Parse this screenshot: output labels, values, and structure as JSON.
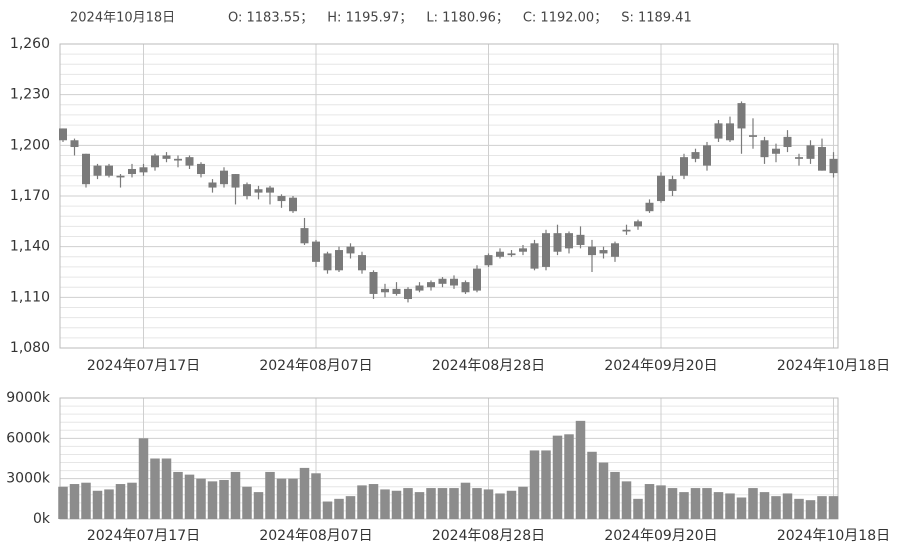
{
  "header": {
    "date": "2024年10月18日",
    "stats": [
      "O: 1183.55；",
      "H: 1195.97；",
      "L: 1180.96；",
      "C: 1192.00；",
      "S: 1189.41"
    ]
  },
  "chart_data": [
    {
      "type": "candlestick",
      "color": "#7a7a7a",
      "categories": [
        null,
        null,
        null,
        null,
        null,
        null,
        null,
        "2024年07月17日",
        null,
        null,
        null,
        null,
        null,
        null,
        null,
        null,
        null,
        null,
        null,
        null,
        null,
        null,
        "2024年08月07日",
        null,
        null,
        null,
        null,
        null,
        null,
        null,
        null,
        null,
        null,
        null,
        null,
        null,
        null,
        "2024年08月28日",
        null,
        null,
        null,
        null,
        null,
        null,
        null,
        null,
        null,
        null,
        null,
        null,
        null,
        null,
        "2024年09月20日",
        null,
        null,
        null,
        null,
        null,
        null,
        null,
        null,
        null,
        null,
        null,
        null,
        null,
        null,
        "2024年10月18日"
      ],
      "open": [
        1210,
        1203,
        1195,
        1188,
        1182,
        1182,
        1183,
        1187,
        1187,
        1192,
        1192,
        1193,
        1189,
        1178,
        1185,
        1183,
        1177,
        1174,
        1175,
        1170,
        1169,
        1151,
        1143,
        1136,
        1138,
        1140,
        1135,
        1125,
        1113,
        1115,
        1115,
        1114,
        1116,
        1118,
        1121,
        1113,
        1114,
        1129,
        1134,
        1136,
        1137,
        1127,
        1128,
        1148,
        1148,
        1147,
        1140,
        1138,
        1134,
        1150,
        1152,
        1161,
        1167,
        1173,
        1182,
        1192,
        1188,
        1204,
        1203,
        1210,
        1205,
        1203,
        1195,
        1205,
        1192,
        1200,
        1199,
        1183.55
      ],
      "high": [
        1210,
        1204,
        1195,
        1189,
        1189,
        1183,
        1189,
        1189,
        1195,
        1196,
        1194,
        1194,
        1190,
        1180,
        1187,
        1183,
        1178,
        1176,
        1176,
        1171,
        1170,
        1157,
        1144,
        1137,
        1140,
        1142,
        1137,
        1126,
        1118,
        1119,
        1116,
        1119,
        1120,
        1122,
        1123,
        1120,
        1129,
        1136,
        1139,
        1138,
        1141,
        1144,
        1150,
        1153,
        1149,
        1152,
        1144,
        1140,
        1143,
        1153,
        1156,
        1168,
        1184,
        1182,
        1195,
        1198,
        1202,
        1215,
        1217,
        1226,
        1216,
        1205,
        1201,
        1209,
        1195,
        1203,
        1204,
        1195.97
      ],
      "low": [
        1202,
        1194,
        1175,
        1180,
        1181,
        1175,
        1181,
        1182,
        1185,
        1190,
        1187,
        1186,
        1181,
        1172,
        1175,
        1165,
        1168,
        1168,
        1165,
        1163,
        1160,
        1141,
        1128,
        1124,
        1125,
        1133,
        1124,
        1109,
        1110,
        1111,
        1107,
        1113,
        1114,
        1116,
        1115,
        1112,
        1113,
        1128,
        1133,
        1134,
        1135,
        1126,
        1126,
        1135,
        1136,
        1139,
        1125,
        1133,
        1131,
        1147,
        1150,
        1160,
        1166,
        1170,
        1180,
        1190,
        1185,
        1202,
        1202,
        1195,
        1198,
        1189,
        1190,
        1196,
        1188,
        1189,
        1185,
        1180.96
      ],
      "close": [
        1203,
        1199,
        1177,
        1182,
        1188,
        1181,
        1186,
        1184,
        1194,
        1194,
        1191,
        1188,
        1183,
        1175,
        1177,
        1175,
        1170,
        1172,
        1172,
        1167,
        1161,
        1142,
        1131,
        1126,
        1126,
        1136,
        1126,
        1112,
        1115,
        1112,
        1109,
        1117,
        1119,
        1121,
        1117,
        1119,
        1127,
        1135,
        1137,
        1135,
        1139,
        1142,
        1148,
        1137,
        1139,
        1141,
        1135,
        1136,
        1142,
        1149,
        1155,
        1166,
        1182,
        1180,
        1193,
        1196,
        1200,
        1213,
        1213,
        1225,
        1206,
        1193,
        1198,
        1199,
        1193,
        1192,
        1185,
        1192.0
      ],
      "ylim": [
        1080,
        1260
      ],
      "yticks": [
        {
          "value": 1080,
          "label": "1,080"
        },
        {
          "value": 1110,
          "label": "1,110"
        },
        {
          "value": 1140,
          "label": "1,140"
        },
        {
          "value": 1170,
          "label": "1,170"
        },
        {
          "value": 1200,
          "label": "1,200"
        },
        {
          "value": 1230,
          "label": "1,230"
        },
        {
          "value": 1260,
          "label": "1,260"
        }
      ]
    },
    {
      "type": "bar",
      "color": "#8c8c8c",
      "categories": [
        null,
        null,
        null,
        null,
        null,
        null,
        null,
        "2024年07月17日",
        null,
        null,
        null,
        null,
        null,
        null,
        null,
        null,
        null,
        null,
        null,
        null,
        null,
        null,
        "2024年08月07日",
        null,
        null,
        null,
        null,
        null,
        null,
        null,
        null,
        null,
        null,
        null,
        null,
        null,
        null,
        "2024年08月28日",
        null,
        null,
        null,
        null,
        null,
        null,
        null,
        null,
        null,
        null,
        null,
        null,
        null,
        null,
        "2024年09月20日",
        null,
        null,
        null,
        null,
        null,
        null,
        null,
        null,
        null,
        null,
        null,
        null,
        null,
        null,
        "2024年10月18日"
      ],
      "values": [
        2400,
        2600,
        2700,
        2100,
        2200,
        2600,
        2700,
        6000,
        4500,
        4500,
        3500,
        3300,
        3000,
        2800,
        2900,
        3500,
        2400,
        2000,
        3500,
        3000,
        3000,
        3800,
        3400,
        1300,
        1500,
        1700,
        2500,
        2600,
        2200,
        2100,
        2300,
        2000,
        2300,
        2300,
        2300,
        2700,
        2300,
        2200,
        1900,
        2100,
        2400,
        5100,
        5100,
        6200,
        6300,
        7300,
        5000,
        4200,
        3500,
        2800,
        1500,
        2600,
        2500,
        2300,
        2000,
        2300,
        2300,
        2000,
        1900,
        1600,
        2300,
        2000,
        1700,
        1900,
        1500,
        1400,
        1700,
        1700
      ],
      "ylim": [
        0,
        9000
      ],
      "yticks": [
        {
          "value": 0,
          "label": "0k"
        },
        {
          "value": 3000,
          "label": "3000k"
        },
        {
          "value": 6000,
          "label": "6000k"
        },
        {
          "value": 9000,
          "label": "9000k"
        }
      ]
    }
  ]
}
